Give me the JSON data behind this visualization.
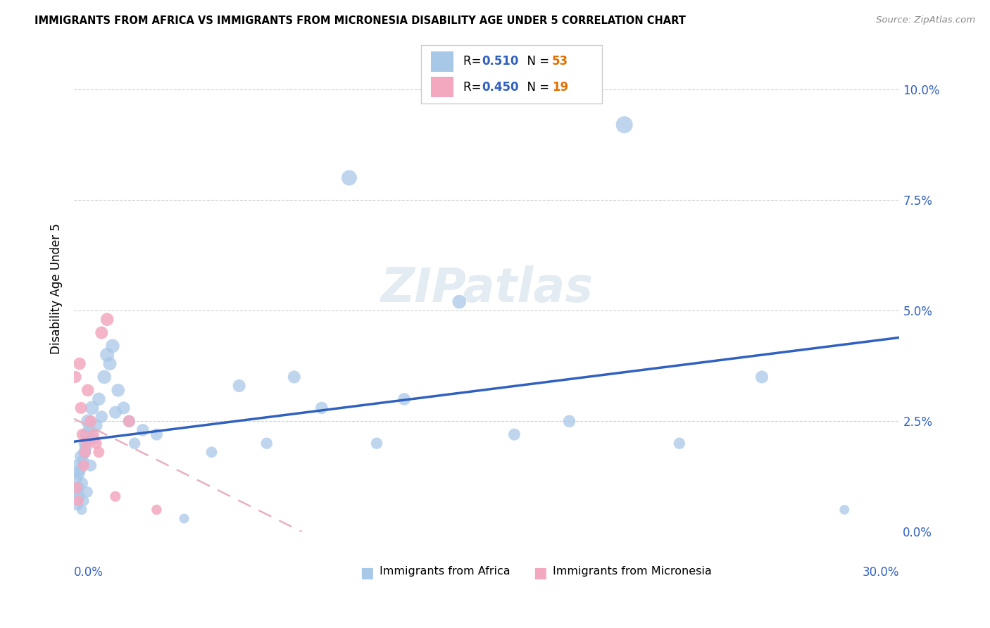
{
  "title": "IMMIGRANTS FROM AFRICA VS IMMIGRANTS FROM MICRONESIA DISABILITY AGE UNDER 5 CORRELATION CHART",
  "source": "Source: ZipAtlas.com",
  "ylabel": "Disability Age Under 5",
  "africa_R": 0.51,
  "africa_N": 53,
  "micronesia_R": 0.45,
  "micronesia_N": 19,
  "africa_color": "#a8c8e8",
  "africa_line_color": "#3060c0",
  "micronesia_color": "#f4a8c0",
  "micronesia_line_color": "#e06080",
  "micronesia_trend_color": "#e8b0c0",
  "watermark": "ZIPatlas",
  "africa_x": [
    0.05,
    0.08,
    0.1,
    0.12,
    0.15,
    0.18,
    0.2,
    0.22,
    0.25,
    0.28,
    0.3,
    0.32,
    0.35,
    0.38,
    0.4,
    0.42,
    0.45,
    0.48,
    0.5,
    0.55,
    0.6,
    0.65,
    0.7,
    0.8,
    0.9,
    1.0,
    1.1,
    1.2,
    1.3,
    1.4,
    1.5,
    1.6,
    1.8,
    2.0,
    2.2,
    2.5,
    3.0,
    4.0,
    5.0,
    6.0,
    7.0,
    8.0,
    9.0,
    10.0,
    11.0,
    12.0,
    14.0,
    16.0,
    18.0,
    20.0,
    22.0,
    25.0,
    28.0
  ],
  "africa_y": [
    1.2,
    0.9,
    1.5,
    0.6,
    1.0,
    1.3,
    0.8,
    1.4,
    1.7,
    0.5,
    1.1,
    1.6,
    0.7,
    1.8,
    2.0,
    1.9,
    2.2,
    0.9,
    2.5,
    2.3,
    1.5,
    2.8,
    2.1,
    2.4,
    3.0,
    2.6,
    3.5,
    4.0,
    3.8,
    4.2,
    2.7,
    3.2,
    2.8,
    2.5,
    2.0,
    2.3,
    2.2,
    0.3,
    1.8,
    3.3,
    2.0,
    3.5,
    2.8,
    8.0,
    2.0,
    3.0,
    5.2,
    2.2,
    2.5,
    9.2,
    2.0,
    3.5,
    0.5
  ],
  "africa_sizes": [
    200,
    180,
    150,
    120,
    160,
    140,
    130,
    150,
    170,
    110,
    140,
    160,
    120,
    170,
    180,
    160,
    190,
    130,
    200,
    180,
    150,
    200,
    160,
    170,
    180,
    160,
    200,
    210,
    190,
    200,
    170,
    180,
    170,
    160,
    140,
    160,
    150,
    100,
    130,
    170,
    140,
    170,
    160,
    250,
    140,
    160,
    200,
    150,
    160,
    300,
    140,
    170,
    100
  ],
  "micronesia_x": [
    0.05,
    0.1,
    0.15,
    0.2,
    0.25,
    0.3,
    0.35,
    0.4,
    0.45,
    0.5,
    0.6,
    0.7,
    0.8,
    0.9,
    1.0,
    1.2,
    1.5,
    2.0,
    3.0
  ],
  "micronesia_y": [
    3.5,
    1.0,
    0.7,
    3.8,
    2.8,
    2.2,
    1.5,
    1.8,
    2.0,
    3.2,
    2.5,
    2.2,
    2.0,
    1.8,
    4.5,
    4.8,
    0.8,
    2.5,
    0.5
  ],
  "micronesia_sizes": [
    150,
    130,
    120,
    160,
    150,
    140,
    130,
    140,
    140,
    160,
    150,
    140,
    140,
    130,
    170,
    180,
    120,
    150,
    110
  ]
}
